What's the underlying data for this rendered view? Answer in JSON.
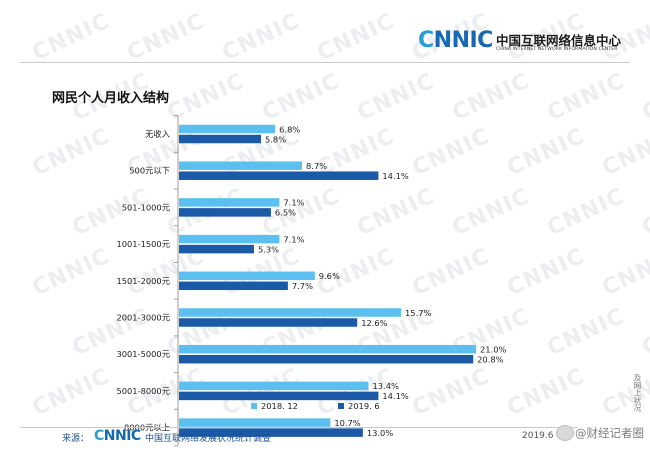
{
  "header": {
    "logo_mark_c": "C",
    "logo_mark_rest": "NNIC",
    "logo_cn": "中国互联网络信息中心",
    "logo_en": "CHINA INTERNET NETWORK INFORMATION CENTER"
  },
  "watermark_text": "CNNIC",
  "colors": {
    "series_2018": "#5bc0ef",
    "series_2019": "#1b5aa7",
    "brand_dark": "#1768b3",
    "brand_light": "#2a9dd8",
    "axis": "#9e9e9e"
  },
  "chart_data": {
    "type": "bar",
    "orientation": "horizontal",
    "title": "网民个人月收入结构",
    "categories": [
      "无收入",
      "500元以下",
      "501-1000元",
      "1001-1500元",
      "1501-2000元",
      "2001-3000元",
      "3001-5000元",
      "5001-8000元",
      "8000元以上"
    ],
    "series": [
      {
        "name": "2018. 12",
        "values": [
          6.8,
          8.7,
          7.1,
          7.1,
          9.6,
          15.7,
          21.0,
          13.4,
          10.7
        ],
        "labels": [
          "6.8%",
          "8.7%",
          "7.1%",
          "7.1%",
          "9.6%",
          "15.7%",
          "21.0%",
          "13.4%",
          "10.7%"
        ]
      },
      {
        "name": "2019. 6",
        "values": [
          5.8,
          14.1,
          6.5,
          5.3,
          7.7,
          12.6,
          20.8,
          14.1,
          13.0
        ],
        "labels": [
          "5.8%",
          "14.1%",
          "6.5%",
          "5.3%",
          "7.7%",
          "12.6%",
          "20.8%",
          "14.1%",
          "13.0%"
        ]
      }
    ],
    "value_unit": "%",
    "xlim": [
      0,
      21
    ],
    "grid": false,
    "legend_position": "bottom"
  },
  "footer": {
    "source_label": "来源：",
    "logo_c": "C",
    "logo_rest": "NNIC",
    "report_title": "中国互联网络发展状况统计调查",
    "date": "2019.6"
  },
  "side_text": "及网上状况",
  "weibo_text": "@财经记者圈"
}
